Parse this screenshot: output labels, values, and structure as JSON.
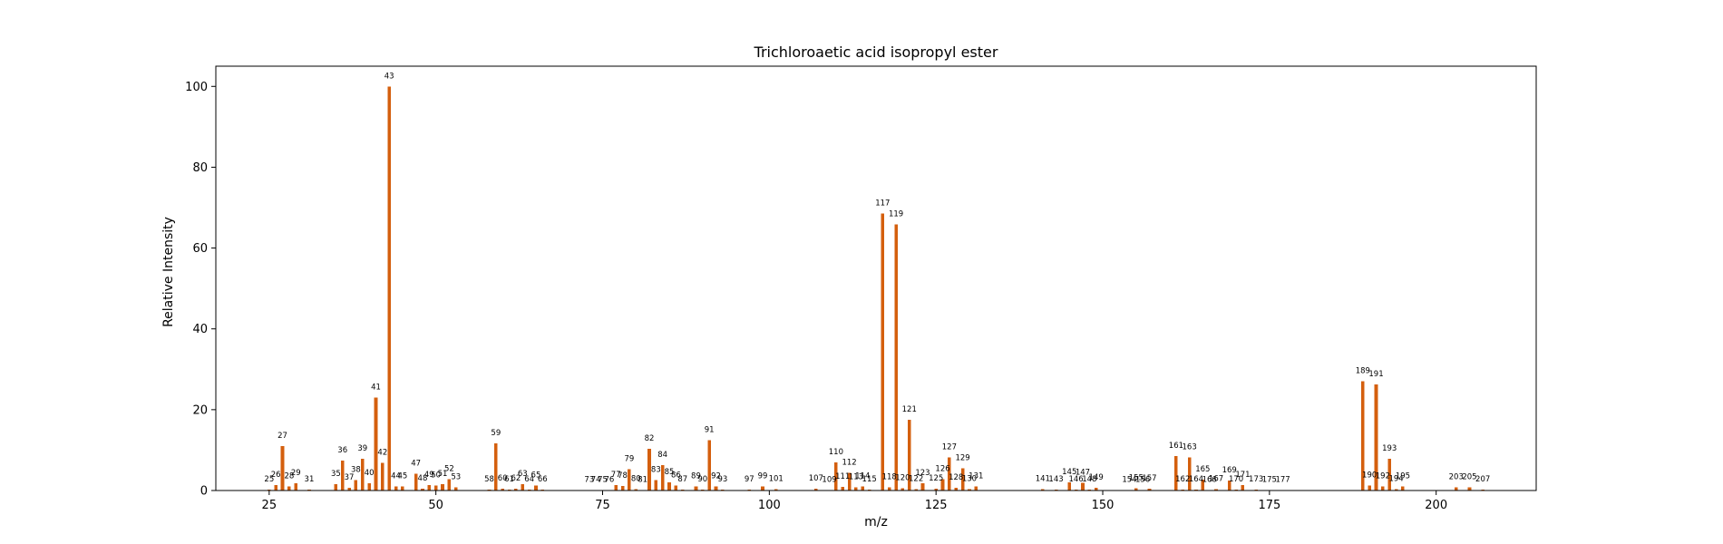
{
  "chart_data": {
    "type": "bar",
    "title": "Trichloroaetic acid isopropyl ester",
    "xlabel": "m/z",
    "ylabel": "Relative Intensity",
    "xlim": [
      17,
      215
    ],
    "ylim": [
      0,
      105
    ],
    "xticks": [
      25,
      50,
      75,
      100,
      125,
      150,
      175,
      200
    ],
    "yticks": [
      0,
      20,
      40,
      60,
      80,
      100
    ],
    "grid": false,
    "bar_color": "#d45f0e",
    "peaks": [
      {
        "mz": 25,
        "intensity": 0.2
      },
      {
        "mz": 26,
        "intensity": 1.3
      },
      {
        "mz": 27,
        "intensity": 11.0
      },
      {
        "mz": 28,
        "intensity": 1.0
      },
      {
        "mz": 29,
        "intensity": 1.8
      },
      {
        "mz": 31,
        "intensity": 0.2
      },
      {
        "mz": 35,
        "intensity": 1.6
      },
      {
        "mz": 36,
        "intensity": 7.4
      },
      {
        "mz": 37,
        "intensity": 0.7
      },
      {
        "mz": 38,
        "intensity": 2.6
      },
      {
        "mz": 39,
        "intensity": 7.8
      },
      {
        "mz": 40,
        "intensity": 1.8
      },
      {
        "mz": 41,
        "intensity": 23.0
      },
      {
        "mz": 42,
        "intensity": 6.8
      },
      {
        "mz": 43,
        "intensity": 100.0
      },
      {
        "mz": 44,
        "intensity": 1.0
      },
      {
        "mz": 45,
        "intensity": 1.0
      },
      {
        "mz": 47,
        "intensity": 4.1
      },
      {
        "mz": 48,
        "intensity": 0.5
      },
      {
        "mz": 49,
        "intensity": 1.4
      },
      {
        "mz": 50,
        "intensity": 1.2
      },
      {
        "mz": 51,
        "intensity": 1.6
      },
      {
        "mz": 52,
        "intensity": 2.8
      },
      {
        "mz": 53,
        "intensity": 0.8
      },
      {
        "mz": 58,
        "intensity": 0.2
      },
      {
        "mz": 59,
        "intensity": 11.7
      },
      {
        "mz": 60,
        "intensity": 0.4
      },
      {
        "mz": 61,
        "intensity": 0.2
      },
      {
        "mz": 62,
        "intensity": 0.4
      },
      {
        "mz": 63,
        "intensity": 1.6
      },
      {
        "mz": 64,
        "intensity": 0.2
      },
      {
        "mz": 65,
        "intensity": 1.2
      },
      {
        "mz": 66,
        "intensity": 0.2
      },
      {
        "mz": 73,
        "intensity": 0.1
      },
      {
        "mz": 74,
        "intensity": 0.1
      },
      {
        "mz": 75,
        "intensity": 0.1
      },
      {
        "mz": 76,
        "intensity": 0.1
      },
      {
        "mz": 77,
        "intensity": 1.3
      },
      {
        "mz": 78,
        "intensity": 1.1
      },
      {
        "mz": 79,
        "intensity": 5.3
      },
      {
        "mz": 80,
        "intensity": 0.3
      },
      {
        "mz": 81,
        "intensity": 0.1
      },
      {
        "mz": 82,
        "intensity": 10.3
      },
      {
        "mz": 83,
        "intensity": 2.6
      },
      {
        "mz": 84,
        "intensity": 6.3
      },
      {
        "mz": 85,
        "intensity": 2.0
      },
      {
        "mz": 86,
        "intensity": 1.2
      },
      {
        "mz": 87,
        "intensity": 0.2
      },
      {
        "mz": 89,
        "intensity": 1.0
      },
      {
        "mz": 90,
        "intensity": 0.2
      },
      {
        "mz": 91,
        "intensity": 12.5
      },
      {
        "mz": 92,
        "intensity": 1.0
      },
      {
        "mz": 93,
        "intensity": 0.2
      },
      {
        "mz": 97,
        "intensity": 0.2
      },
      {
        "mz": 99,
        "intensity": 1.0
      },
      {
        "mz": 101,
        "intensity": 0.3
      },
      {
        "mz": 107,
        "intensity": 0.5
      },
      {
        "mz": 109,
        "intensity": 0.1
      },
      {
        "mz": 110,
        "intensity": 7.0
      },
      {
        "mz": 111,
        "intensity": 0.9
      },
      {
        "mz": 112,
        "intensity": 4.4
      },
      {
        "mz": 113,
        "intensity": 0.8
      },
      {
        "mz": 114,
        "intensity": 1.0
      },
      {
        "mz": 115,
        "intensity": 0.2
      },
      {
        "mz": 117,
        "intensity": 68.5
      },
      {
        "mz": 118,
        "intensity": 0.8
      },
      {
        "mz": 119,
        "intensity": 65.8
      },
      {
        "mz": 120,
        "intensity": 0.6
      },
      {
        "mz": 121,
        "intensity": 17.5
      },
      {
        "mz": 122,
        "intensity": 0.3
      },
      {
        "mz": 123,
        "intensity": 1.8
      },
      {
        "mz": 125,
        "intensity": 0.5
      },
      {
        "mz": 126,
        "intensity": 2.8
      },
      {
        "mz": 127,
        "intensity": 8.2
      },
      {
        "mz": 128,
        "intensity": 0.7
      },
      {
        "mz": 129,
        "intensity": 5.5
      },
      {
        "mz": 130,
        "intensity": 0.3
      },
      {
        "mz": 131,
        "intensity": 1.0
      },
      {
        "mz": 141,
        "intensity": 0.3
      },
      {
        "mz": 143,
        "intensity": 0.2
      },
      {
        "mz": 145,
        "intensity": 2.0
      },
      {
        "mz": 146,
        "intensity": 0.2
      },
      {
        "mz": 147,
        "intensity": 1.9
      },
      {
        "mz": 148,
        "intensity": 0.2
      },
      {
        "mz": 149,
        "intensity": 0.7
      },
      {
        "mz": 154,
        "intensity": 0.1
      },
      {
        "mz": 155,
        "intensity": 0.6
      },
      {
        "mz": 156,
        "intensity": 0.1
      },
      {
        "mz": 157,
        "intensity": 0.5
      },
      {
        "mz": 161,
        "intensity": 8.5
      },
      {
        "mz": 162,
        "intensity": 0.2
      },
      {
        "mz": 163,
        "intensity": 8.2
      },
      {
        "mz": 164,
        "intensity": 0.2
      },
      {
        "mz": 165,
        "intensity": 2.7
      },
      {
        "mz": 166,
        "intensity": 0.1
      },
      {
        "mz": 167,
        "intensity": 0.3
      },
      {
        "mz": 169,
        "intensity": 2.5
      },
      {
        "mz": 170,
        "intensity": 0.2
      },
      {
        "mz": 171,
        "intensity": 1.3
      },
      {
        "mz": 173,
        "intensity": 0.2
      },
      {
        "mz": 175,
        "intensity": 0.1
      },
      {
        "mz": 177,
        "intensity": 0.1
      },
      {
        "mz": 189,
        "intensity": 27.0
      },
      {
        "mz": 190,
        "intensity": 1.2
      },
      {
        "mz": 191,
        "intensity": 26.2
      },
      {
        "mz": 192,
        "intensity": 1.0
      },
      {
        "mz": 193,
        "intensity": 7.8
      },
      {
        "mz": 194,
        "intensity": 0.3
      },
      {
        "mz": 195,
        "intensity": 1.0
      },
      {
        "mz": 203,
        "intensity": 0.8
      },
      {
        "mz": 205,
        "intensity": 0.8
      },
      {
        "mz": 207,
        "intensity": 0.2
      }
    ]
  }
}
